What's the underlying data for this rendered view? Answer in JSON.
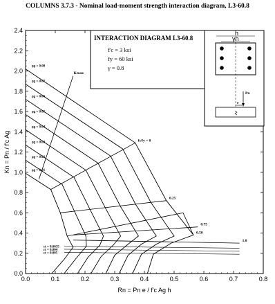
{
  "title": "COLUMNS 3.7.3 - Nominal load-moment strength interaction diagram, L3-60.8",
  "legend_box": {
    "title": "INTERACTION DIAGRAM L3-60.8",
    "lines": [
      "f'c = 3 ksi",
      "fy = 60 ksi",
      "γ = 0.8"
    ]
  },
  "inset": {
    "label_h": "h",
    "label_gh": "γh",
    "label_e": "e",
    "label_pn": "Pn"
  },
  "chart_data": {
    "type": "line",
    "title": "COLUMNS 3.7.3 - Nominal load-moment strength interaction diagram, L3-60.8",
    "xlabel": "Rn = Pn e / f'c Ag h",
    "ylabel": "Kn = Pn / f'c Ag",
    "xlim": [
      0,
      0.8
    ],
    "ylim": [
      0,
      2.4
    ],
    "xticks": [
      "0.0",
      "0.1",
      "0.2",
      "0.3",
      "0.4",
      "0.5",
      "0.6",
      "0.7",
      "0.8"
    ],
    "yticks": [
      "0.0",
      "0.2",
      "0.4",
      "0.6",
      "0.8",
      "1.0",
      "1.2",
      "1.4",
      "1.6",
      "1.8",
      "2.0",
      "2.2",
      "2.4"
    ],
    "grid": false,
    "series": [
      {
        "name": "ρg = 0.01",
        "values": [
          [
            0,
            0.99
          ],
          [
            0.085,
            0.83
          ],
          [
            0.117,
            0.6
          ],
          [
            0.14,
            0.37
          ],
          [
            0.16,
            0.26
          ],
          [
            0.13,
            0.14
          ],
          [
            0.088,
            0
          ]
        ]
      },
      {
        "name": "ρg = 0.02",
        "values": [
          [
            0,
            1.12
          ],
          [
            0.123,
            0.88
          ],
          [
            0.167,
            0.6
          ],
          [
            0.203,
            0.37
          ],
          [
            0.205,
            0.27
          ],
          [
            0.17,
            0.15
          ],
          [
            0.13,
            0
          ]
        ]
      },
      {
        "name": "ρg = 0.03",
        "values": [
          [
            0,
            1.27
          ],
          [
            0.163,
            0.95
          ],
          [
            0.219,
            0.62
          ],
          [
            0.262,
            0.37
          ],
          [
            0.25,
            0.28
          ],
          [
            0.21,
            0.16
          ],
          [
            0.175,
            0
          ]
        ]
      },
      {
        "name": "ρg = 0.04",
        "values": [
          [
            0,
            1.42
          ],
          [
            0.203,
            1.02
          ],
          [
            0.27,
            0.64
          ],
          [
            0.32,
            0.37
          ],
          [
            0.295,
            0.28
          ],
          [
            0.255,
            0.17
          ],
          [
            0.22,
            0
          ]
        ]
      },
      {
        "name": "ρg = 0.05",
        "values": [
          [
            0,
            1.57
          ],
          [
            0.244,
            1.09
          ],
          [
            0.32,
            0.66
          ],
          [
            0.38,
            0.37
          ],
          [
            0.345,
            0.29
          ],
          [
            0.3,
            0.18
          ],
          [
            0.27,
            0
          ]
        ]
      },
      {
        "name": "ρg = 0.06",
        "values": [
          [
            0,
            1.72
          ],
          [
            0.286,
            1.16
          ],
          [
            0.371,
            0.68
          ],
          [
            0.44,
            0.37
          ],
          [
            0.39,
            0.29
          ],
          [
            0.345,
            0.18
          ],
          [
            0.315,
            0
          ]
        ]
      },
      {
        "name": "ρg = 0.07",
        "values": [
          [
            0,
            1.87
          ],
          [
            0.327,
            1.23
          ],
          [
            0.422,
            0.7
          ],
          [
            0.5,
            0.37
          ],
          [
            0.44,
            0.29
          ],
          [
            0.39,
            0.19
          ],
          [
            0.36,
            0
          ]
        ]
      },
      {
        "name": "ρg = 0.08",
        "values": [
          [
            0,
            2.02
          ],
          [
            0.369,
            1.29
          ],
          [
            0.474,
            0.72
          ],
          [
            0.565,
            0.38
          ],
          [
            0.49,
            0.3
          ],
          [
            0.43,
            0.19
          ],
          [
            0.41,
            0
          ]
        ]
      }
    ],
    "kmax_line": [
      [
        0.045,
        0.93
      ],
      [
        0.16,
        1.95
      ]
    ],
    "fs_lines": [
      {
        "label": "fs/fy = 0",
        "values": [
          [
            0.085,
            0.83
          ],
          [
            0.369,
            1.29
          ]
        ]
      },
      {
        "label": "0.25",
        "values": [
          [
            0.117,
            0.6
          ],
          [
            0.474,
            0.72
          ]
        ]
      },
      {
        "label": "0.50",
        "values": [
          [
            0.14,
            0.37
          ],
          [
            0.53,
            0.6
          ],
          [
            0.565,
            0.38
          ]
        ]
      },
      {
        "label": "0.75",
        "values": [
          [
            0.16,
            0.38
          ],
          [
            0.58,
            0.46
          ]
        ]
      },
      {
        "label": "1.0",
        "values": [
          [
            0.16,
            0.33
          ],
          [
            0.72,
            0.3
          ]
        ]
      }
    ],
    "strain_lines": [
      {
        "label": "εt = 0.0035",
        "values": [
          [
            0.13,
            0.27
          ],
          [
            0.72,
            0.25
          ]
        ]
      },
      {
        "label": "εt = 0.004",
        "values": [
          [
            0.13,
            0.24
          ],
          [
            0.72,
            0.22
          ]
        ]
      },
      {
        "label": "εt = 0.005",
        "values": [
          [
            0.13,
            0.21
          ],
          [
            0.72,
            0.19
          ]
        ]
      }
    ]
  }
}
